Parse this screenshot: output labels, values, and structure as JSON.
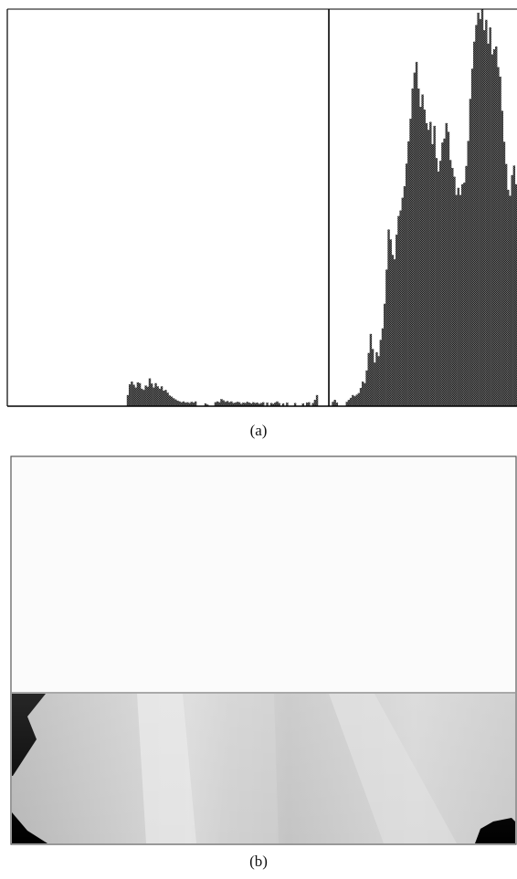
{
  "figure": {
    "panel_a_caption": "(a)",
    "panel_b_caption": "(b)"
  },
  "colors": {
    "bars": "#3a3a3a",
    "axis": "#000000",
    "threshold": "#000000",
    "panel_b_top": "#fbfbfb",
    "panel_b_road": "#cfcfcf",
    "panel_b_mask": "#000000"
  },
  "chart_data": {
    "type": "bar",
    "title": "",
    "xlabel": "",
    "ylabel": "",
    "xlim": [
      0,
      255
    ],
    "ylim": [
      0,
      1
    ],
    "grid": false,
    "legend": "none",
    "threshold": 161,
    "bins": [
      [
        60,
        0.028
      ],
      [
        61,
        0.055
      ],
      [
        62,
        0.062
      ],
      [
        63,
        0.054
      ],
      [
        64,
        0.047
      ],
      [
        65,
        0.06
      ],
      [
        66,
        0.058
      ],
      [
        67,
        0.044
      ],
      [
        68,
        0.041
      ],
      [
        69,
        0.052
      ],
      [
        70,
        0.049
      ],
      [
        71,
        0.07
      ],
      [
        72,
        0.057
      ],
      [
        73,
        0.047
      ],
      [
        74,
        0.058
      ],
      [
        75,
        0.05
      ],
      [
        76,
        0.044
      ],
      [
        77,
        0.05
      ],
      [
        78,
        0.039
      ],
      [
        79,
        0.041
      ],
      [
        80,
        0.034
      ],
      [
        81,
        0.027
      ],
      [
        82,
        0.024
      ],
      [
        83,
        0.02
      ],
      [
        84,
        0.017
      ],
      [
        85,
        0.014
      ],
      [
        86,
        0.012
      ],
      [
        87,
        0.01
      ],
      [
        88,
        0.012
      ],
      [
        89,
        0.009
      ],
      [
        90,
        0.01
      ],
      [
        91,
        0.008
      ],
      [
        92,
        0.011
      ],
      [
        93,
        0.009
      ],
      [
        94,
        0.012
      ],
      [
        99,
        0.007
      ],
      [
        100,
        0.004
      ],
      [
        104,
        0.01
      ],
      [
        105,
        0.012
      ],
      [
        106,
        0.01
      ],
      [
        107,
        0.018
      ],
      [
        108,
        0.015
      ],
      [
        109,
        0.011
      ],
      [
        110,
        0.013
      ],
      [
        111,
        0.01
      ],
      [
        112,
        0.012
      ],
      [
        113,
        0.008
      ],
      [
        114,
        0.009
      ],
      [
        115,
        0.011
      ],
      [
        116,
        0.01
      ],
      [
        117,
        0.006
      ],
      [
        118,
        0.009
      ],
      [
        119,
        0.008
      ],
      [
        120,
        0.011
      ],
      [
        121,
        0.009
      ],
      [
        122,
        0.007
      ],
      [
        123,
        0.01
      ],
      [
        124,
        0.008
      ],
      [
        125,
        0.009
      ],
      [
        126,
        0.006
      ],
      [
        127,
        0.008
      ],
      [
        128,
        0.01
      ],
      [
        130,
        0.009
      ],
      [
        132,
        0.008
      ],
      [
        133,
        0.006
      ],
      [
        134,
        0.009
      ],
      [
        135,
        0.012
      ],
      [
        136,
        0.008
      ],
      [
        138,
        0.007
      ],
      [
        140,
        0.009
      ],
      [
        144,
        0.008
      ],
      [
        148,
        0.007
      ],
      [
        150,
        0.009
      ],
      [
        151,
        0.01
      ],
      [
        153,
        0.008
      ],
      [
        154,
        0.016
      ],
      [
        155,
        0.028
      ],
      [
        163,
        0.011
      ],
      [
        164,
        0.016
      ],
      [
        165,
        0.009
      ],
      [
        170,
        0.011
      ],
      [
        171,
        0.016
      ],
      [
        172,
        0.021
      ],
      [
        173,
        0.028
      ],
      [
        174,
        0.025
      ],
      [
        175,
        0.029
      ],
      [
        176,
        0.033
      ],
      [
        177,
        0.046
      ],
      [
        178,
        0.062
      ],
      [
        179,
        0.058
      ],
      [
        180,
        0.09
      ],
      [
        181,
        0.134
      ],
      [
        182,
        0.182
      ],
      [
        183,
        0.144
      ],
      [
        184,
        0.11
      ],
      [
        185,
        0.136
      ],
      [
        186,
        0.126
      ],
      [
        187,
        0.167
      ],
      [
        188,
        0.196
      ],
      [
        189,
        0.258
      ],
      [
        190,
        0.344
      ],
      [
        191,
        0.445
      ],
      [
        192,
        0.42
      ],
      [
        193,
        0.381
      ],
      [
        194,
        0.37
      ],
      [
        195,
        0.432
      ],
      [
        196,
        0.479
      ],
      [
        197,
        0.493
      ],
      [
        198,
        0.525
      ],
      [
        199,
        0.554
      ],
      [
        200,
        0.611
      ],
      [
        201,
        0.667
      ],
      [
        202,
        0.724
      ],
      [
        203,
        0.8
      ],
      [
        204,
        0.84
      ],
      [
        205,
        0.867
      ],
      [
        206,
        0.8
      ],
      [
        207,
        0.754
      ],
      [
        208,
        0.785
      ],
      [
        209,
        0.747
      ],
      [
        210,
        0.713
      ],
      [
        211,
        0.696
      ],
      [
        212,
        0.716
      ],
      [
        213,
        0.66
      ],
      [
        214,
        0.706
      ],
      [
        215,
        0.625
      ],
      [
        216,
        0.591
      ],
      [
        217,
        0.618
      ],
      [
        218,
        0.664
      ],
      [
        219,
        0.674
      ],
      [
        220,
        0.713
      ],
      [
        221,
        0.691
      ],
      [
        222,
        0.62
      ],
      [
        223,
        0.6
      ],
      [
        224,
        0.578
      ],
      [
        225,
        0.532
      ],
      [
        226,
        0.55
      ],
      [
        227,
        0.532
      ],
      [
        228,
        0.559
      ],
      [
        229,
        0.563
      ],
      [
        230,
        0.605
      ],
      [
        231,
        0.668
      ],
      [
        232,
        0.774
      ],
      [
        233,
        0.85
      ],
      [
        234,
        0.918
      ],
      [
        235,
        0.96
      ],
      [
        236,
        0.991
      ],
      [
        237,
        0.975
      ],
      [
        238,
        1.0
      ],
      [
        239,
        0.947
      ],
      [
        240,
        0.973
      ],
      [
        241,
        0.913
      ],
      [
        242,
        0.954
      ],
      [
        243,
        0.886
      ],
      [
        244,
        0.899
      ],
      [
        245,
        0.906
      ],
      [
        246,
        0.854
      ],
      [
        247,
        0.83
      ],
      [
        248,
        0.744
      ],
      [
        249,
        0.666
      ],
      [
        250,
        0.61
      ],
      [
        251,
        0.545
      ],
      [
        252,
        0.53
      ],
      [
        253,
        0.582
      ],
      [
        254,
        0.606
      ],
      [
        255,
        0.559
      ]
    ]
  }
}
